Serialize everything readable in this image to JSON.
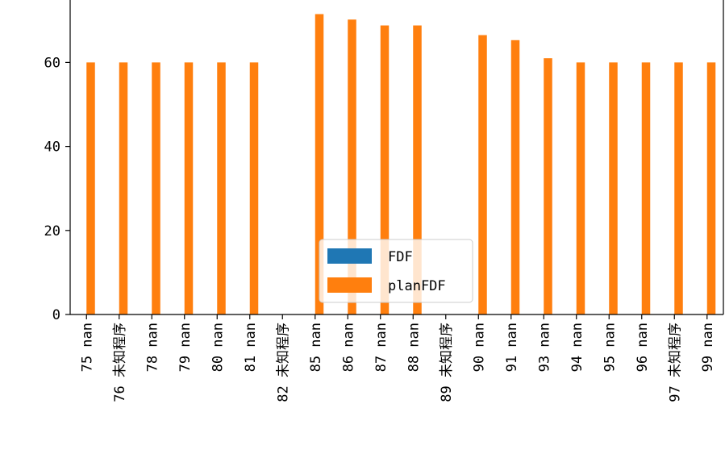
{
  "chart_data": {
    "type": "bar",
    "categories": [
      "75 nan",
      "76 未知程序",
      "78 nan",
      "79 nan",
      "80 nan",
      "81 nan",
      "82 未知程序",
      "85 nan",
      "86 nan",
      "87 nan",
      "88 nan",
      "89 未知程序",
      "90 nan",
      "91 nan",
      "93 nan",
      "94 nan",
      "95 nan",
      "96 nan",
      "97 未知程序",
      "99 nan"
    ],
    "series": [
      {
        "name": "FDF",
        "color": "#1f77b4",
        "values": [
          0,
          0,
          0,
          0,
          0,
          0,
          0,
          0,
          0,
          0,
          0,
          0,
          0,
          0,
          0,
          0,
          0,
          0,
          0,
          0
        ]
      },
      {
        "name": "planFDF",
        "color": "#ff7f0e",
        "values": [
          60,
          60,
          60,
          60,
          60,
          60,
          0,
          71.5,
          70.2,
          68.8,
          68.8,
          0,
          66.5,
          65.3,
          61,
          60,
          60,
          60,
          60,
          60
        ]
      }
    ],
    "yticks": [
      0,
      20,
      40,
      60
    ],
    "ylim": [
      0,
      75
    ],
    "legend": "lower-center",
    "grid": false
  }
}
